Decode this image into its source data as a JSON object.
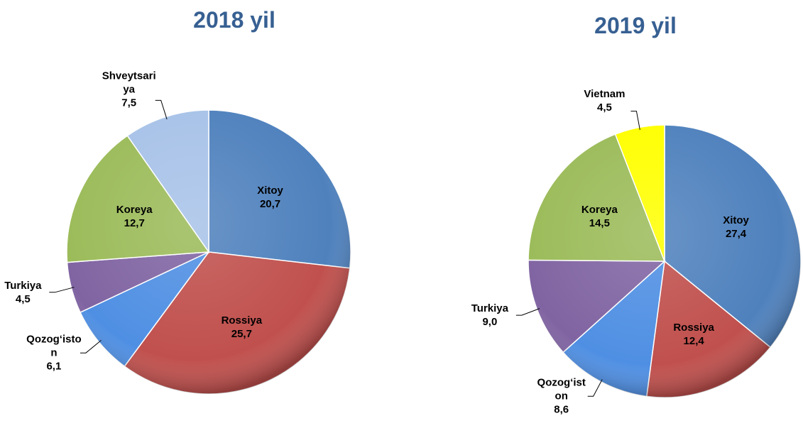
{
  "chart_data": [
    {
      "type": "pie",
      "title": "2018 yil",
      "categories": [
        "Xitoy",
        "Rossiya",
        "Qozog‘iston",
        "Turkiya",
        "Koreya",
        "Shveytsariya"
      ],
      "values": [
        20.7,
        25.7,
        6.1,
        4.5,
        12.7,
        7.5
      ],
      "value_labels": [
        "20,7",
        "25,7",
        "6,1",
        "4,5",
        "12,7",
        "7,5"
      ],
      "colors": [
        "#4f81bd",
        "#c0504d",
        "#4f8fe3",
        "#8064a2",
        "#9bbb59",
        "#a7c2e8"
      ]
    },
    {
      "type": "pie",
      "title": "2019 yil",
      "categories": [
        "Xitoy",
        "Rossiya",
        "Qozog‘iston",
        "Turkiya",
        "Koreya",
        "Vietnam"
      ],
      "values": [
        27.4,
        12.4,
        8.6,
        9.0,
        14.5,
        4.5
      ],
      "value_labels": [
        "27,4",
        "12,4",
        "8,6",
        "9,0",
        "14,5",
        "4,5"
      ],
      "colors": [
        "#4f81bd",
        "#c0504d",
        "#4f8fe3",
        "#8064a2",
        "#9bbb59",
        "#ffff00"
      ]
    }
  ]
}
